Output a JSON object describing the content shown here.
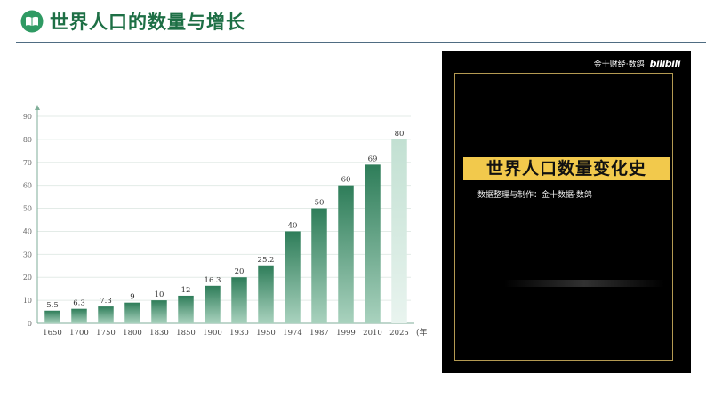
{
  "header": {
    "title": "世界人口的数量与增长",
    "accent_color": "#1d6f45"
  },
  "chart_data": {
    "type": "bar",
    "title": "",
    "xlabel": "",
    "ylabel": "",
    "x_unit": "(年)",
    "categories": [
      "1650",
      "1700",
      "1750",
      "1800",
      "1830",
      "1850",
      "1900",
      "1930",
      "1950",
      "1974",
      "1987",
      "1999",
      "2010",
      "2025"
    ],
    "values": [
      5.5,
      6.3,
      7.3,
      9,
      10,
      12,
      16.3,
      20,
      25.2,
      40,
      50,
      60,
      69,
      80
    ],
    "value_labels": [
      "5.5",
      "6.3",
      "7.3",
      "9",
      "10",
      "12",
      "16.3",
      "20",
      "25.2",
      "40",
      "50",
      "60",
      "69",
      "80"
    ],
    "yticks": [
      "0",
      "10",
      "20",
      "30",
      "40",
      "50",
      "60",
      "70",
      "80",
      "90"
    ],
    "ylim": [
      0,
      90
    ],
    "grid": true,
    "bar_color": "#4f9a78"
  },
  "video": {
    "brand": "金十财经·数鸽",
    "platform": "bilibili",
    "headline": "世界人口数量变化史",
    "subtitle": "数据整理与制作：金十数据·数鸽"
  }
}
